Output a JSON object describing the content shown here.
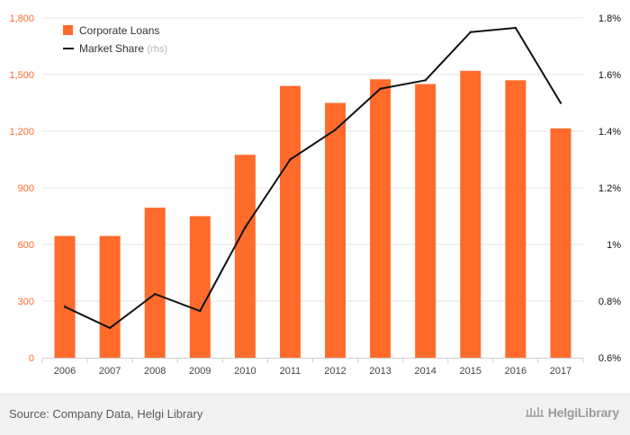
{
  "chart_data": {
    "type": "bar",
    "categories": [
      "2006",
      "2007",
      "2008",
      "2009",
      "2010",
      "2011",
      "2012",
      "2013",
      "2014",
      "2015",
      "2016",
      "2017"
    ],
    "series": [
      {
        "name": "Corporate Loans",
        "type": "bar",
        "axis": "left",
        "color": "#ff6b2b",
        "values": [
          645,
          645,
          795,
          750,
          1075,
          1440,
          1350,
          1475,
          1450,
          1520,
          1470,
          1215
        ]
      },
      {
        "name": "Market Share",
        "name_suffix": "(rhs)",
        "type": "line",
        "axis": "right",
        "color": "#111111",
        "values": [
          0.78,
          0.705,
          0.825,
          0.765,
          1.06,
          1.3,
          1.405,
          1.55,
          1.58,
          1.75,
          1.765,
          1.5
        ]
      }
    ],
    "left_axis": {
      "ylim": [
        0,
        1800
      ],
      "ticks": [
        0,
        300,
        600,
        900,
        1200,
        1500,
        1800
      ],
      "tick_labels": [
        "0",
        "300",
        "600",
        "900",
        "1,200",
        "1,500",
        "1,800"
      ],
      "color": "#ff6b2b"
    },
    "right_axis": {
      "ylim": [
        0.6,
        1.8
      ],
      "ticks": [
        0.6,
        0.8,
        1.0,
        1.2,
        1.4,
        1.6,
        1.8
      ],
      "tick_labels": [
        "0.6%",
        "0.8%",
        "1%",
        "1.2%",
        "1.4%",
        "1.6%",
        "1.8%"
      ],
      "color": "#111111"
    },
    "legend": {
      "placement": "top-left"
    },
    "grid": true
  },
  "footer": {
    "source": "Source: Company Data, Helgi Library",
    "brand": "HelgiLibrary"
  }
}
